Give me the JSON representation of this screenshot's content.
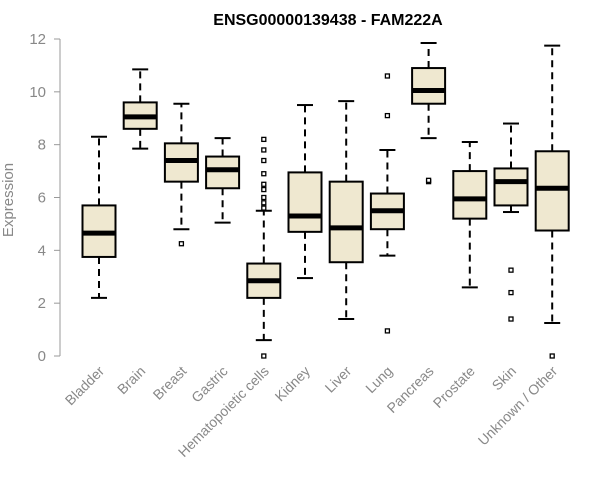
{
  "chart_data": {
    "type": "boxplot",
    "title": "ENSG00000139438 - FAM222A",
    "xlabel": "",
    "ylabel": "Expression",
    "ylim": [
      0,
      12
    ],
    "yticks": [
      0,
      2,
      4,
      6,
      8,
      10,
      12
    ],
    "box_fill": "#efe8d0",
    "categories": [
      "Bladder",
      "Brain",
      "Breast",
      "Gastric",
      "Hematopoietic cells",
      "Kidney",
      "Liver",
      "Lung",
      "Pancreas",
      "Prostate",
      "Skin",
      "Unknown / Other"
    ],
    "boxes": [
      {
        "name": "Bladder",
        "whisker_low": 2.2,
        "q1": 3.75,
        "median": 4.65,
        "q3": 5.7,
        "whisker_high": 8.3,
        "outliers": []
      },
      {
        "name": "Brain",
        "whisker_low": 7.85,
        "q1": 8.6,
        "median": 9.05,
        "q3": 9.6,
        "whisker_high": 10.85,
        "outliers": []
      },
      {
        "name": "Breast",
        "whisker_low": 4.8,
        "q1": 6.6,
        "median": 7.4,
        "q3": 8.05,
        "whisker_high": 9.55,
        "outliers": [
          4.25
        ]
      },
      {
        "name": "Gastric",
        "whisker_low": 5.05,
        "q1": 6.35,
        "median": 7.05,
        "q3": 7.55,
        "whisker_high": 8.25,
        "outliers": []
      },
      {
        "name": "Hematopoietic cells",
        "whisker_low": 0.6,
        "q1": 2.2,
        "median": 2.85,
        "q3": 3.5,
        "whisker_high": 5.5,
        "outliers": [
          0.0,
          5.6,
          5.8,
          6.0,
          6.3,
          6.5,
          6.9,
          7.4,
          7.8,
          8.2
        ]
      },
      {
        "name": "Kidney",
        "whisker_low": 2.95,
        "q1": 4.7,
        "median": 5.3,
        "q3": 6.95,
        "whisker_high": 9.5,
        "outliers": []
      },
      {
        "name": "Liver",
        "whisker_low": 1.4,
        "q1": 3.55,
        "median": 4.85,
        "q3": 6.6,
        "whisker_high": 9.65,
        "outliers": []
      },
      {
        "name": "Lung",
        "whisker_low": 3.8,
        "q1": 4.8,
        "median": 5.5,
        "q3": 6.15,
        "whisker_high": 7.8,
        "outliers": [
          0.95,
          9.1,
          10.6
        ]
      },
      {
        "name": "Pancreas",
        "whisker_low": 8.25,
        "q1": 9.55,
        "median": 10.05,
        "q3": 10.9,
        "whisker_high": 11.85,
        "outliers": [
          6.6,
          6.65
        ]
      },
      {
        "name": "Prostate",
        "whisker_low": 2.6,
        "q1": 5.2,
        "median": 5.95,
        "q3": 7.0,
        "whisker_high": 8.1,
        "outliers": []
      },
      {
        "name": "Skin",
        "whisker_low": 5.45,
        "q1": 5.7,
        "median": 6.6,
        "q3": 7.1,
        "whisker_high": 8.8,
        "outliers": [
          1.4,
          2.4,
          3.25
        ]
      },
      {
        "name": "Unknown / Other",
        "whisker_low": 1.25,
        "q1": 4.75,
        "median": 6.35,
        "q3": 7.75,
        "whisker_high": 11.75,
        "outliers": [
          0.0
        ]
      }
    ]
  }
}
